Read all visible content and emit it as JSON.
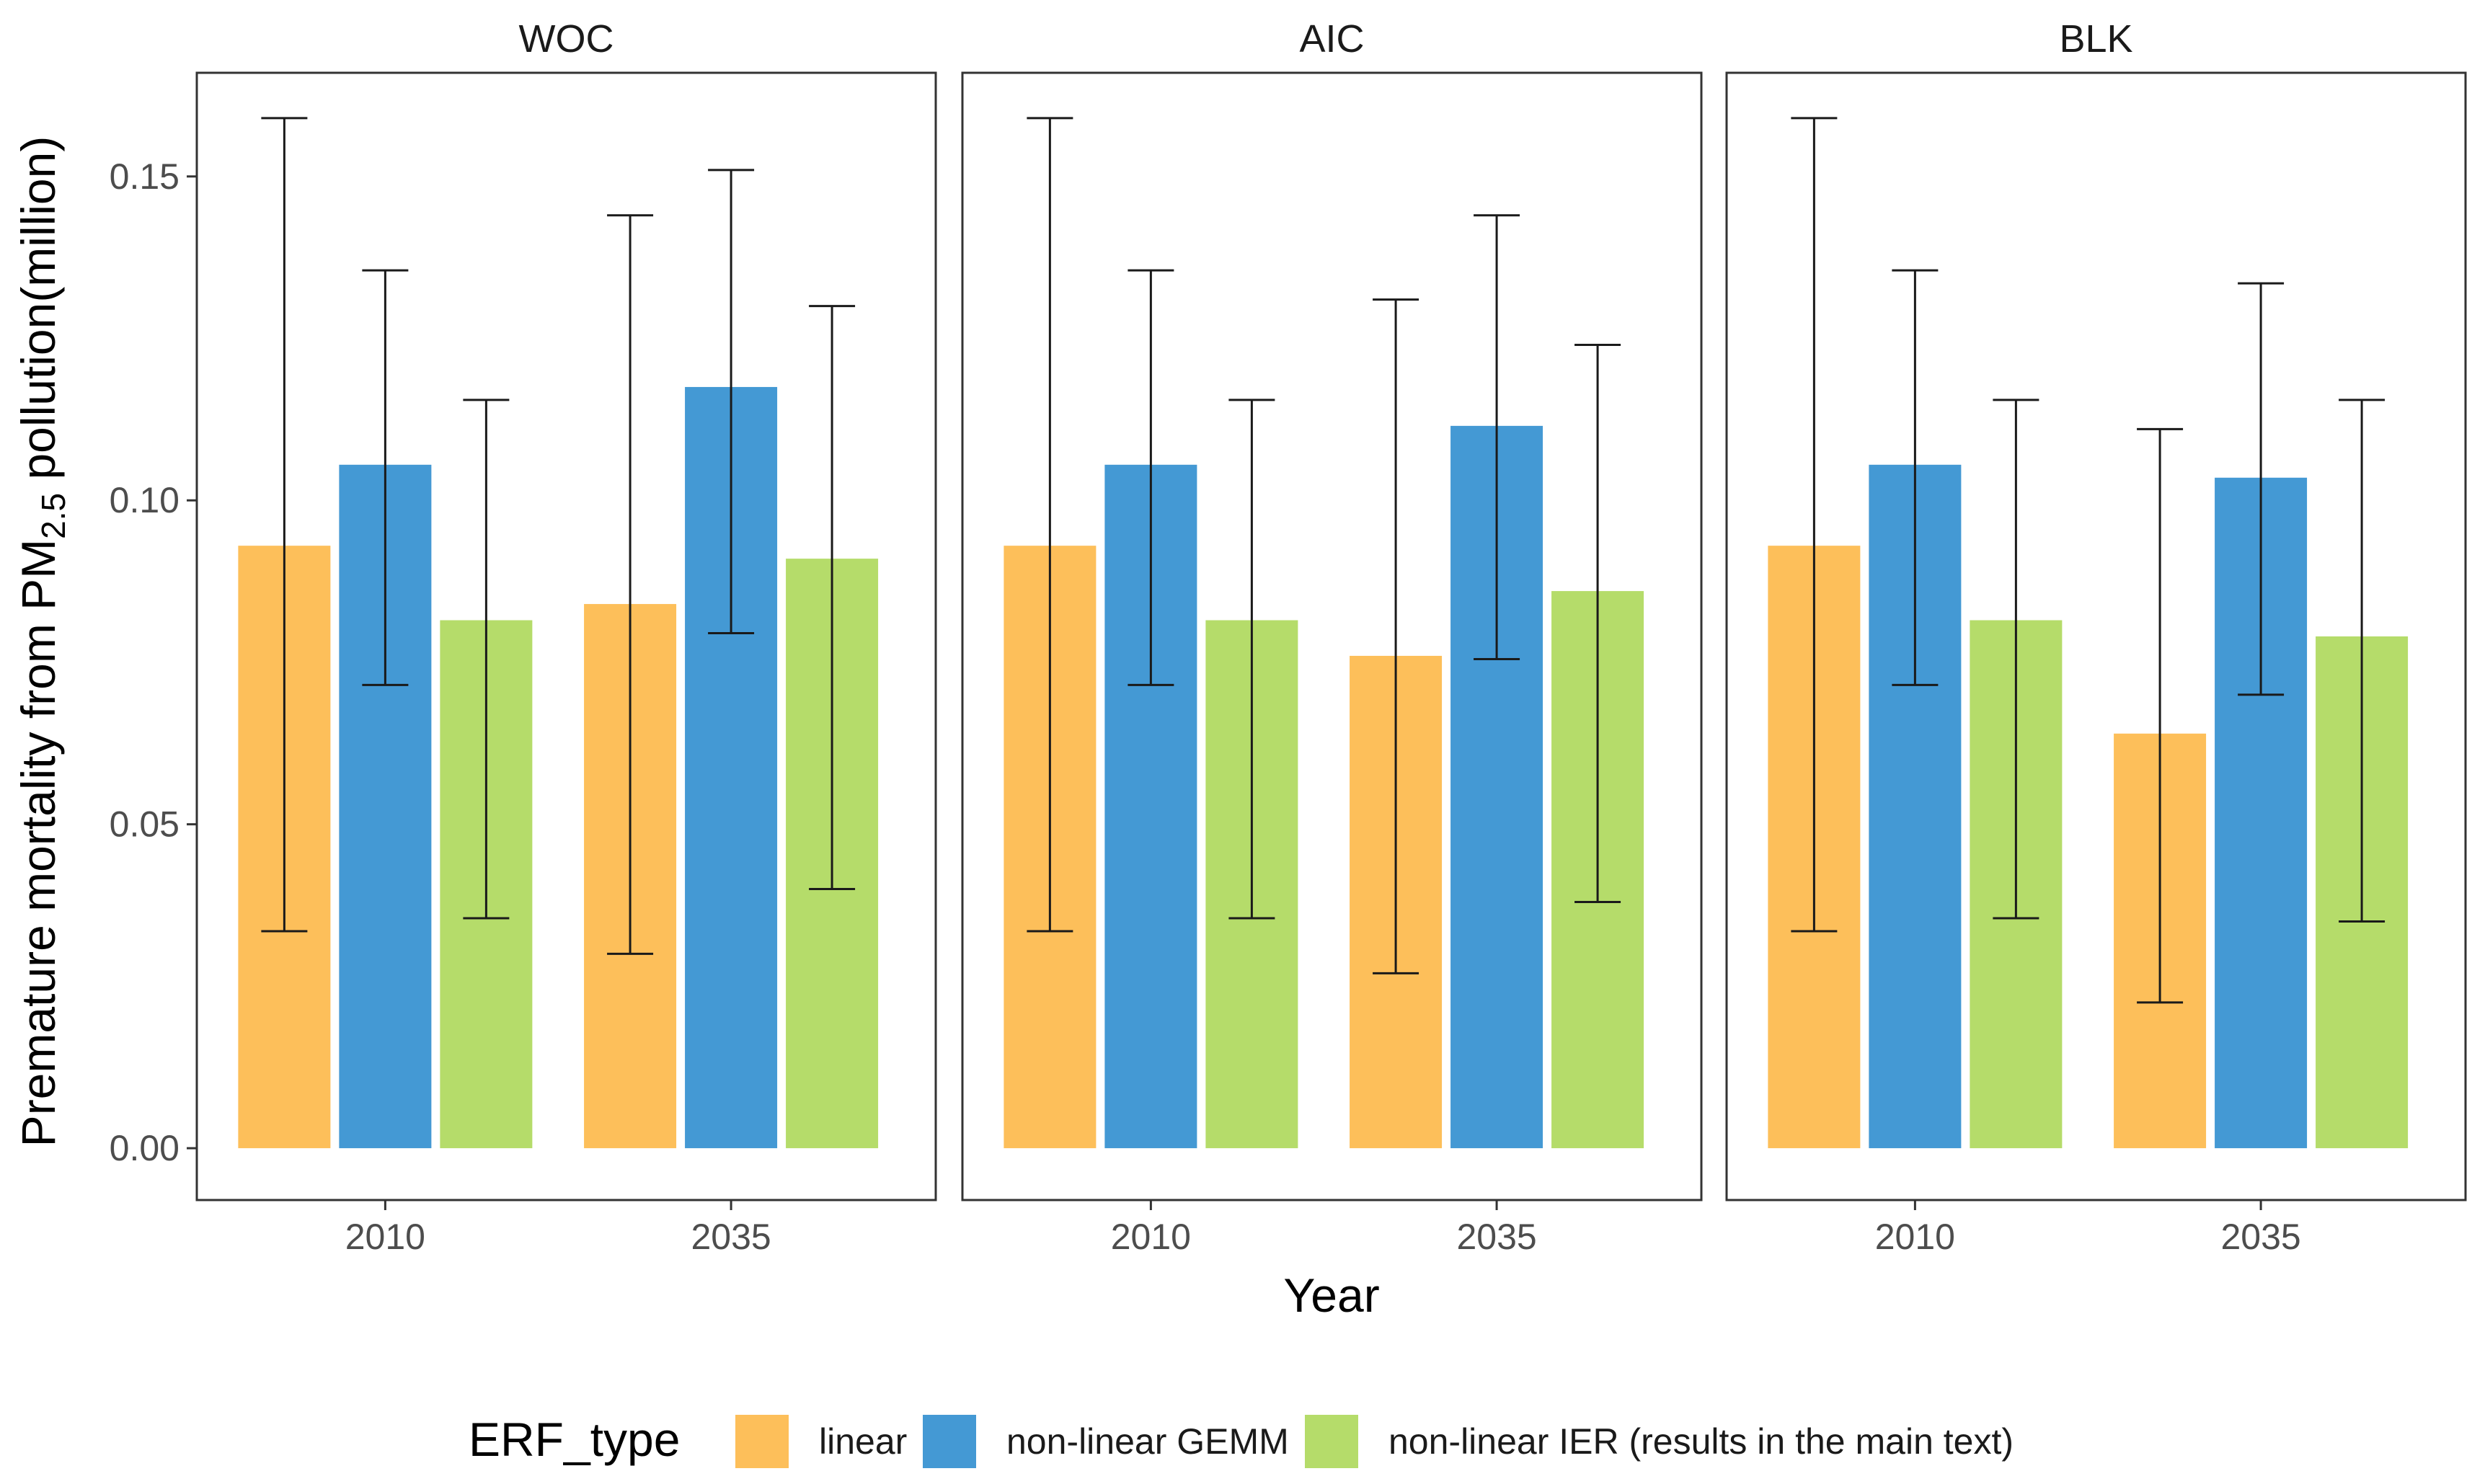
{
  "chart_data": {
    "type": "bar",
    "facets": [
      "WOC",
      "AIC",
      "BLK"
    ],
    "categories": [
      "2010",
      "2035"
    ],
    "xlabel": "Year",
    "ylabel_prefix": "Premature mortality from PM",
    "ylabel_sub": "2.5",
    "ylabel_suffix": " pollution(million)",
    "ylim": [
      -0.008,
      0.166
    ],
    "yticks": [
      0.0,
      0.05,
      0.1,
      0.15
    ],
    "ytick_labels": [
      "0.00",
      "0.05",
      "0.10",
      "0.15"
    ],
    "legend_title": "ERF_type",
    "legend_position": "bottom",
    "series": [
      {
        "name": "linear",
        "color": "#FDBF5A",
        "values": {
          "WOC": [
            0.093,
            0.084
          ],
          "AIC": [
            0.093,
            0.076
          ],
          "BLK": [
            0.093,
            0.064
          ]
        },
        "lower": {
          "WOC": [
            0.0335,
            0.03
          ],
          "AIC": [
            0.0335,
            0.027
          ],
          "BLK": [
            0.0335,
            0.0225
          ]
        },
        "upper": {
          "WOC": [
            0.159,
            0.144
          ],
          "AIC": [
            0.159,
            0.131
          ],
          "BLK": [
            0.159,
            0.111
          ]
        }
      },
      {
        "name": "non-linear GEMM",
        "color": "#4499D4",
        "values": {
          "WOC": [
            0.1055,
            0.1175
          ],
          "AIC": [
            0.1055,
            0.1115
          ],
          "BLK": [
            0.1055,
            0.1035
          ]
        },
        "lower": {
          "WOC": [
            0.0715,
            0.0795
          ],
          "AIC": [
            0.0715,
            0.0755
          ],
          "BLK": [
            0.0715,
            0.07
          ]
        },
        "upper": {
          "WOC": [
            0.1355,
            0.151
          ],
          "AIC": [
            0.1355,
            0.144
          ],
          "BLK": [
            0.1355,
            0.1335
          ]
        }
      },
      {
        "name": "non-linear IER (results in the main text)",
        "color": "#B5DC6A",
        "values": {
          "WOC": [
            0.0815,
            0.091
          ],
          "AIC": [
            0.0815,
            0.086
          ],
          "BLK": [
            0.0815,
            0.079
          ]
        },
        "lower": {
          "WOC": [
            0.0355,
            0.04
          ],
          "AIC": [
            0.0355,
            0.038
          ],
          "BLK": [
            0.0355,
            0.035
          ]
        },
        "upper": {
          "WOC": [
            0.1155,
            0.13
          ],
          "AIC": [
            0.1155,
            0.124
          ],
          "BLK": [
            0.1155,
            0.1155
          ]
        }
      }
    ]
  }
}
